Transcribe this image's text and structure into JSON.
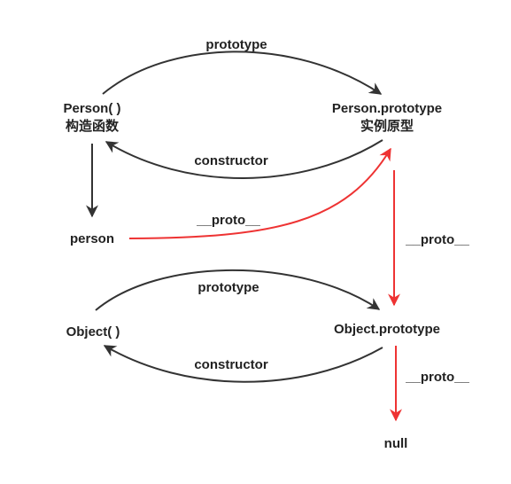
{
  "colors": {
    "dark_arrow": "#333333",
    "red_arrow": "#ee3333",
    "text": "#222222",
    "background": "#ffffff"
  },
  "nodes": {
    "person_constructor": {
      "line1": "Person( )",
      "line2": "构造函数"
    },
    "person_prototype": {
      "line1": "Person.prototype",
      "line2": "实例原型"
    },
    "person_instance": {
      "label": "person"
    },
    "object_constructor": {
      "label": "Object( )"
    },
    "object_prototype": {
      "label": "Object.prototype"
    },
    "null_node": {
      "label": "null"
    }
  },
  "edges": {
    "person_prototype_link": {
      "label": "prototype"
    },
    "person_constructor_link": {
      "label": "constructor"
    },
    "person_proto_link": {
      "label": "__proto__"
    },
    "person_prototype_proto_link": {
      "label": "__proto__"
    },
    "object_prototype_link": {
      "label": "prototype"
    },
    "object_constructor_link": {
      "label": "constructor"
    },
    "object_prototype_proto_link": {
      "label": "__proto__"
    }
  }
}
